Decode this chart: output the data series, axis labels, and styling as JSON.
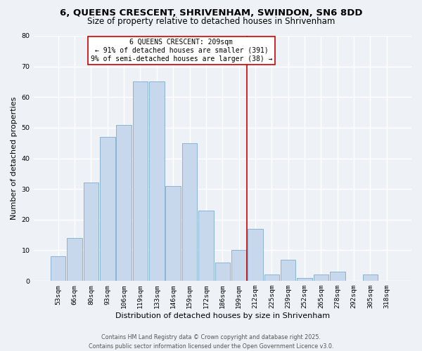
{
  "title_line1": "6, QUEENS CRESCENT, SHRIVENHAM, SWINDON, SN6 8DD",
  "title_line2": "Size of property relative to detached houses in Shrivenham",
  "xlabel": "Distribution of detached houses by size in Shrivenham",
  "ylabel": "Number of detached properties",
  "bar_labels": [
    "53sqm",
    "66sqm",
    "80sqm",
    "93sqm",
    "106sqm",
    "119sqm",
    "133sqm",
    "146sqm",
    "159sqm",
    "172sqm",
    "186sqm",
    "199sqm",
    "212sqm",
    "225sqm",
    "239sqm",
    "252sqm",
    "265sqm",
    "278sqm",
    "292sqm",
    "305sqm",
    "318sqm"
  ],
  "bar_heights": [
    8,
    14,
    32,
    47,
    51,
    65,
    65,
    31,
    45,
    23,
    6,
    10,
    17,
    2,
    7,
    1,
    2,
    3,
    0,
    2,
    0
  ],
  "bar_color": "#c8d8ec",
  "bar_edge_color": "#8ab4d4",
  "vline_x_index": 12,
  "vline_color": "#cc0000",
  "annotation_title": "6 QUEENS CRESCENT: 209sqm",
  "annotation_line1": "← 91% of detached houses are smaller (391)",
  "annotation_line2": "9% of semi-detached houses are larger (38) →",
  "annotation_box_color": "#ffffff",
  "annotation_box_edge": "#cc0000",
  "ylim": [
    0,
    80
  ],
  "yticks": [
    0,
    10,
    20,
    30,
    40,
    50,
    60,
    70,
    80
  ],
  "footer_line1": "Contains HM Land Registry data © Crown copyright and database right 2025.",
  "footer_line2": "Contains public sector information licensed under the Open Government Licence v3.0.",
  "bg_color": "#eef2f7",
  "grid_color": "#ffffff",
  "title_fontsize": 9.5,
  "subtitle_fontsize": 8.5,
  "tick_fontsize": 6.8,
  "ylabel_fontsize": 8,
  "xlabel_fontsize": 8
}
